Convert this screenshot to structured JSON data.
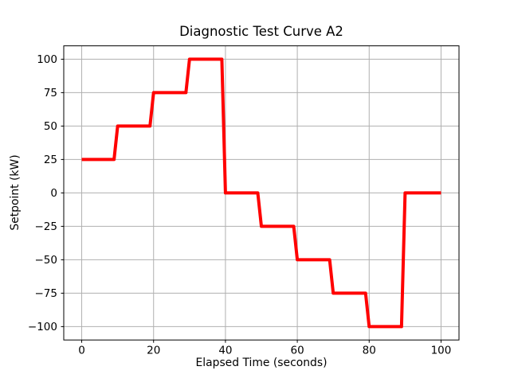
{
  "chart_data": {
    "type": "line",
    "title": "Diagnostic Test Curve A2",
    "xlabel": "Elapsed Time (seconds)",
    "ylabel": "Setpoint (kW)",
    "line_color": "#ff0000",
    "line_width": 4,
    "grid": true,
    "grid_color": "#b0b0b0",
    "background_color": "#ffffff",
    "spine_color": "#000000",
    "legend": null,
    "xlim": [
      -5,
      105
    ],
    "ylim": [
      -110,
      110
    ],
    "xticks": [
      0,
      20,
      40,
      60,
      80,
      100
    ],
    "xtick_labels": [
      "0",
      "20",
      "40",
      "60",
      "80",
      "100"
    ],
    "yticks": [
      -100,
      -75,
      -50,
      -25,
      0,
      25,
      50,
      75,
      100
    ],
    "ytick_labels": [
      "−100",
      "−75",
      "−50",
      "−25",
      "0",
      "25",
      "50",
      "75",
      "100"
    ],
    "points": [
      [
        0,
        25
      ],
      [
        9,
        25
      ],
      [
        10,
        50
      ],
      [
        19,
        50
      ],
      [
        20,
        75
      ],
      [
        29,
        75
      ],
      [
        30,
        100
      ],
      [
        39,
        100
      ],
      [
        40,
        0
      ],
      [
        49,
        0
      ],
      [
        50,
        -25
      ],
      [
        59,
        -25
      ],
      [
        60,
        -50
      ],
      [
        69,
        -50
      ],
      [
        70,
        -75
      ],
      [
        79,
        -75
      ],
      [
        80,
        -100
      ],
      [
        89,
        -100
      ],
      [
        90,
        0
      ],
      [
        100,
        0
      ]
    ]
  }
}
